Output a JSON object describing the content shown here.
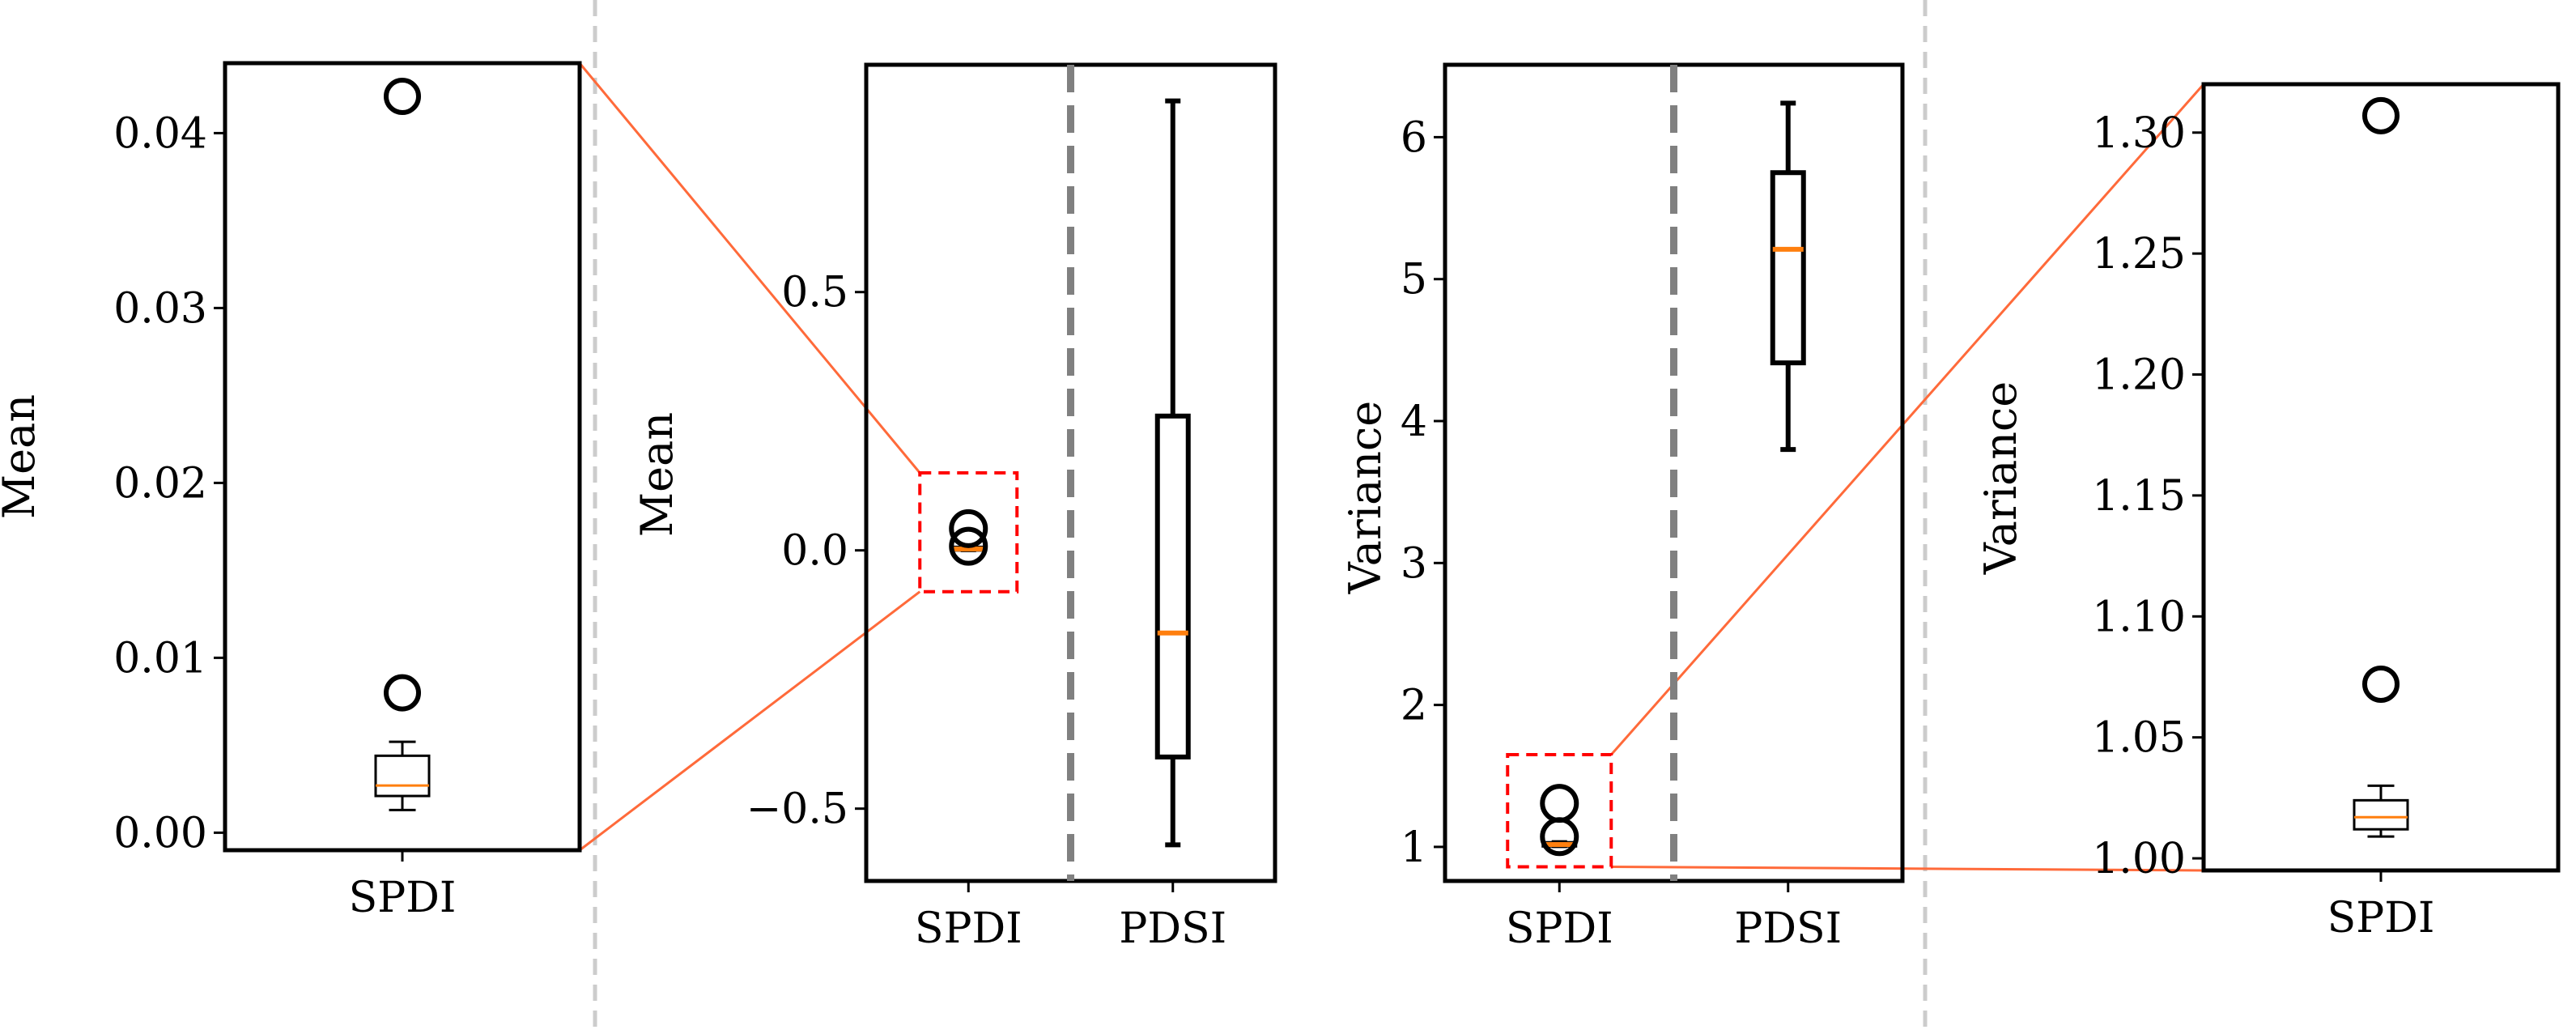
{
  "chart_data": [
    {
      "type": "boxplot",
      "ylabel": "Mean",
      "ylim": [
        -0.001,
        0.044
      ],
      "yticks": [
        0.0,
        0.01,
        0.02,
        0.03,
        0.04
      ],
      "ytick_labels": [
        "0.00",
        "0.01",
        "0.02",
        "0.03",
        "0.04"
      ],
      "categories": [
        "SPDI"
      ],
      "boxes": [
        {
          "name": "SPDI",
          "whislo": 0.0013,
          "q1": 0.0021,
          "med": 0.0027,
          "q3": 0.0044,
          "whishi": 0.0052,
          "fliers": [
            0.008,
            0.0421
          ]
        }
      ]
    },
    {
      "type": "boxplot",
      "ylabel": "Mean",
      "ylim": [
        -0.64,
        0.94
      ],
      "yticks": [
        -0.5,
        0.0,
        0.5
      ],
      "ytick_labels": [
        "−0.5",
        "0.0",
        "0.5"
      ],
      "categories": [
        "SPDI",
        "PDSI"
      ],
      "boxes": [
        {
          "name": "SPDI",
          "whislo": 0.0013,
          "q1": 0.0021,
          "med": 0.0027,
          "q3": 0.0044,
          "whishi": 0.0052,
          "fliers": [
            0.008,
            0.0421
          ]
        },
        {
          "name": "PDSI",
          "whislo": -0.57,
          "q1": -0.4,
          "med": -0.16,
          "q3": 0.26,
          "whishi": 0.87,
          "fliers": []
        }
      ],
      "zoom_box": {
        "ymin": -0.08,
        "ymax": 0.15
      }
    },
    {
      "type": "boxplot",
      "ylabel": "Variance",
      "ylim": [
        0.76,
        6.51
      ],
      "yticks": [
        1,
        2,
        3,
        4,
        5,
        6
      ],
      "ytick_labels": [
        "1",
        "2",
        "3",
        "4",
        "5",
        "6"
      ],
      "categories": [
        "SPDI",
        "PDSI"
      ],
      "boxes": [
        {
          "name": "SPDI",
          "whislo": 1.009,
          "q1": 1.012,
          "med": 1.017,
          "q3": 1.024,
          "whishi": 1.03,
          "fliers": [
            1.072,
            1.307
          ]
        },
        {
          "name": "PDSI",
          "whislo": 3.8,
          "q1": 4.41,
          "med": 5.21,
          "q3": 5.75,
          "whishi": 6.24,
          "fliers": []
        }
      ],
      "zoom_box": {
        "ymin": 0.86,
        "ymax": 1.65
      }
    },
    {
      "type": "boxplot",
      "ylabel": "Variance",
      "ylim": [
        0.995,
        1.32
      ],
      "yticks": [
        1.0,
        1.05,
        1.1,
        1.15,
        1.2,
        1.25,
        1.3
      ],
      "ytick_labels": [
        "1.00",
        "1.05",
        "1.10",
        "1.15",
        "1.20",
        "1.25",
        "1.30"
      ],
      "categories": [
        "SPDI"
      ],
      "boxes": [
        {
          "name": "SPDI",
          "whislo": 1.009,
          "q1": 1.012,
          "med": 1.017,
          "q3": 1.024,
          "whishi": 1.03,
          "fliers": [
            1.072,
            1.307
          ]
        }
      ]
    }
  ],
  "colors": {
    "median": "#ff7f0e",
    "box_edge": "#000000",
    "divider": "#808080",
    "zoom_box": "#ff0000",
    "connector": "#ff6a3a",
    "panel_separator": "#cccccc"
  }
}
